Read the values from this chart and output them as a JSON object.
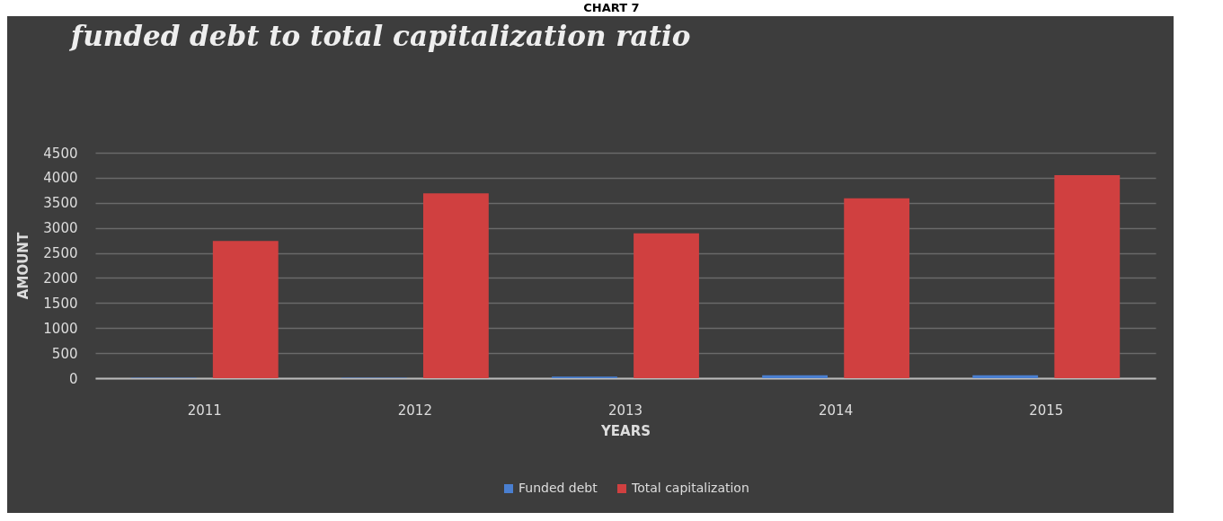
{
  "chart_data": {
    "type": "bar",
    "title": "funded debt to total capitalization ratio",
    "xlabel": "YEARS",
    "ylabel": "AMOUNT",
    "annotations": [
      "CHART 7"
    ],
    "categories": [
      "2011",
      "2012",
      "2013",
      "2014",
      "2015"
    ],
    "series": [
      {
        "name": "Funded debt",
        "color": "#4a7fd0",
        "values": [
          10,
          10,
          30,
          60,
          60
        ]
      },
      {
        "name": "Total capitalization",
        "color": "#d04040",
        "values": [
          2740,
          3690,
          2890,
          3590,
          4050
        ]
      }
    ],
    "ylim": [
      0,
      4500
    ],
    "yticks": [
      0,
      500,
      1000,
      1500,
      2000,
      2500,
      3000,
      3500,
      4000,
      4500
    ],
    "grid": "y",
    "legend": "bottom"
  }
}
